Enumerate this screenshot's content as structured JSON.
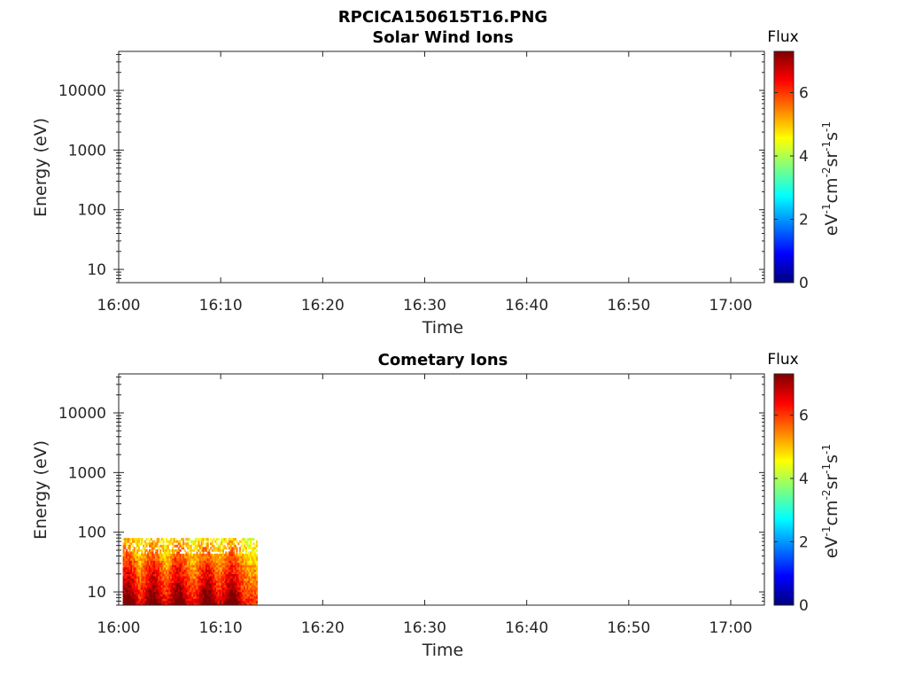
{
  "figure_title": "RPCICA150615T16.PNG",
  "colors": {
    "jet": [
      "#00007f",
      "#0000ff",
      "#007fff",
      "#00ffff",
      "#7fff7f",
      "#ffff00",
      "#ff7f00",
      "#ff0000",
      "#7f0000"
    ]
  },
  "chart_data": [
    {
      "type": "heatmap",
      "title": "Solar Wind Ions",
      "xlabel": "Time",
      "ylabel": "Energy (eV)",
      "x_ticks": [
        "16:00",
        "16:10",
        "16:20",
        "16:30",
        "16:40",
        "16:50",
        "17:00"
      ],
      "xlim_minutes": [
        0,
        63.3
      ],
      "y_scale": "log",
      "y_ticks": [
        {
          "value": 10,
          "label": "10"
        },
        {
          "value": 100,
          "label": "100"
        },
        {
          "value": 1000,
          "label": "1000"
        },
        {
          "value": 10000,
          "label": "10000"
        }
      ],
      "ylim": [
        6,
        45000
      ],
      "colorbar": {
        "title": "Flux",
        "label": "eV-1cm-2sr-1s-1",
        "range": [
          0,
          7.3
        ],
        "ticks": [
          0,
          2,
          4,
          6
        ]
      },
      "data": []
    },
    {
      "type": "heatmap",
      "title": "Cometary Ions",
      "xlabel": "Time",
      "ylabel": "Energy (eV)",
      "x_ticks": [
        "16:00",
        "16:10",
        "16:20",
        "16:30",
        "16:40",
        "16:50",
        "17:00"
      ],
      "xlim_minutes": [
        0,
        63.3
      ],
      "y_scale": "log",
      "y_ticks": [
        {
          "value": 10,
          "label": "10"
        },
        {
          "value": 100,
          "label": "100"
        },
        {
          "value": 1000,
          "label": "1000"
        },
        {
          "value": 10000,
          "label": "10000"
        }
      ],
      "ylim": [
        6,
        45000
      ],
      "colorbar": {
        "title": "Flux",
        "label": "eV-1cm-2sr-1s-1",
        "range": [
          0,
          7.3
        ],
        "ticks": [
          0,
          2,
          4,
          6
        ]
      },
      "data": {
        "time_range_minutes": [
          0.4,
          13.5
        ],
        "energy_range_eV": [
          6,
          80
        ],
        "peak_flux_times_minutes": [
          0.8,
          3.3,
          5.8,
          8.6,
          11.0
        ],
        "peak_flux": 7.2,
        "background_flux": 4.3
      }
    }
  ]
}
